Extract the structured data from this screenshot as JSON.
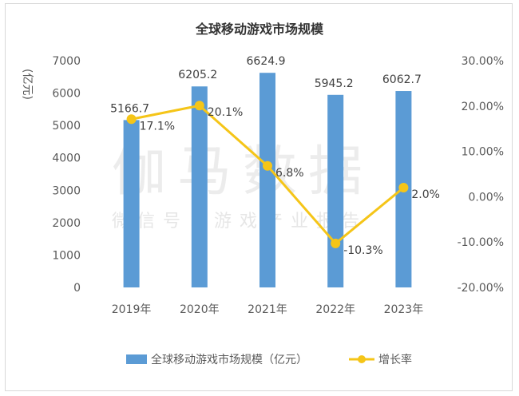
{
  "chart_data": {
    "type": "bar+line",
    "title": "全球移动游戏市场规模",
    "categories": [
      "2019年",
      "2020年",
      "2021年",
      "2022年",
      "2023年"
    ],
    "series": [
      {
        "name": "全球移动游戏市场规模（亿元）",
        "type": "bar",
        "axis": "left",
        "values": [
          5166.7,
          6205.2,
          6624.9,
          5945.2,
          6062.7
        ],
        "value_labels": [
          "5166.7",
          "6205.2",
          "6624.9",
          "5945.2",
          "6062.7"
        ],
        "color": "#5b9bd5"
      },
      {
        "name": "增长率",
        "type": "line",
        "axis": "right",
        "values": [
          17.1,
          20.1,
          6.8,
          -10.3,
          2.0
        ],
        "value_labels": [
          "17.1%",
          "20.1%",
          "6.8%",
          "-10.3%",
          "2.0%"
        ],
        "color": "#f5c518"
      }
    ],
    "y_left": {
      "label": "(亿元)",
      "range": [
        0,
        7000
      ],
      "ticks": [
        0,
        1000,
        2000,
        3000,
        4000,
        5000,
        6000,
        7000
      ],
      "tick_labels": [
        "0",
        "1000",
        "2000",
        "3000",
        "4000",
        "5000",
        "6000",
        "7000"
      ]
    },
    "y_right": {
      "range": [
        -20,
        30
      ],
      "ticks": [
        -20,
        -10,
        0,
        10,
        20,
        30
      ],
      "tick_labels": [
        "-20.00%",
        "-10.00%",
        "0.00%",
        "10.00%",
        "20.00%",
        "30.00%"
      ]
    },
    "grid": false,
    "legend_position": "bottom-center"
  },
  "watermark": {
    "main": "伽马数据",
    "sub": "微信号：游戏产业报告"
  },
  "colors": {
    "bar": "#5b9bd5",
    "line": "#f5c518",
    "axis_text": "#595959",
    "watermark": "#c8c8c8"
  }
}
